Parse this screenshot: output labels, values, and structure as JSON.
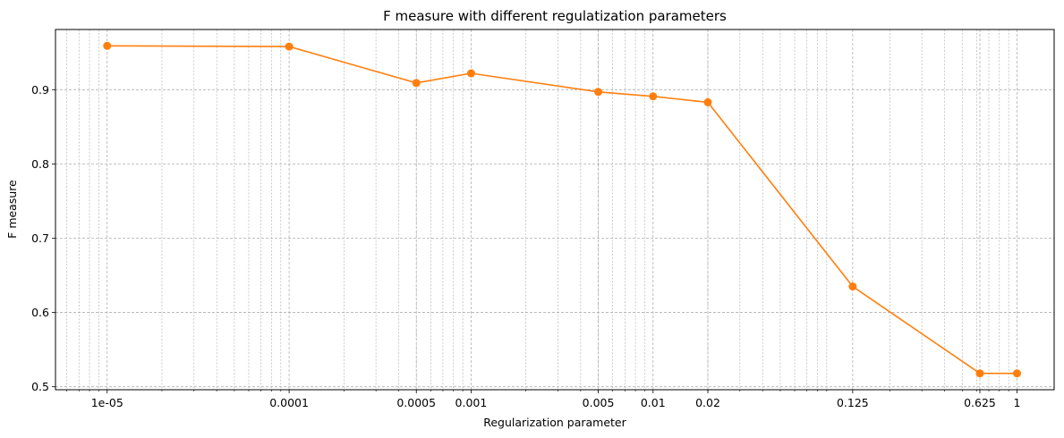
{
  "chart_data": {
    "type": "line",
    "title": "F measure with different regulatization parameters",
    "xlabel": "Regularization parameter",
    "ylabel": "F measure",
    "xscale": "log",
    "xlim": [
      5.2e-06,
      1.6
    ],
    "ylim": [
      0.496,
      0.981
    ],
    "grid": true,
    "grid_style": "dashed",
    "legend": "none",
    "x_tick_labels": [
      "1e-05",
      "0.0001",
      "0.0005",
      "0.001",
      "0.005",
      "0.01",
      "0.02",
      "0.125",
      "0.625",
      "1"
    ],
    "y_tick_labels": [
      "0.5",
      "0.6",
      "0.7",
      "0.8",
      "0.9"
    ],
    "series": [
      {
        "color": "#ff7f0e",
        "marker": "circle",
        "x": [
          1e-05,
          0.0001,
          0.0005,
          0.001,
          0.005,
          0.01,
          0.02,
          0.125,
          0.625,
          1
        ],
        "y": [
          0.959,
          0.958,
          0.909,
          0.922,
          0.897,
          0.891,
          0.883,
          0.635,
          0.518,
          0.518
        ]
      }
    ]
  }
}
